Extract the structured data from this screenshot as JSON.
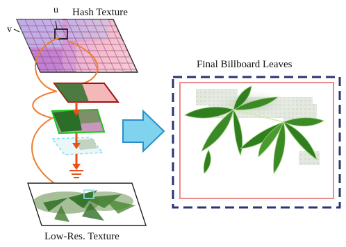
{
  "labels": {
    "hash_texture": "Hash Texture",
    "axis_u": "u",
    "axis_v": "v",
    "final_billboard": "Final Billboard Leaves",
    "low_res_texture": "Low-Res. Texture"
  },
  "icons": {
    "arrow": "big-right-arrow-icon",
    "ground": "ground-symbol-icon"
  },
  "colors": {
    "grid_line": "#8a3a6a",
    "hash_purple": "#c58ad8",
    "hash_pink": "#f2b6c8",
    "hash_blue": "#b9c6f2",
    "panel_red": "#a01010",
    "panel_green": "#1cc81c",
    "dashed_cyan": "#8fe0e6",
    "curve_orange": "#f07d2e",
    "arrow_red": "#e8501a",
    "big_arrow_fill": "#7fd3ee",
    "big_arrow_stroke": "#2a8fc6",
    "final_dash": "#2a3470",
    "final_border": "#e88a8a",
    "leaf_green": "#2f7f1e"
  }
}
